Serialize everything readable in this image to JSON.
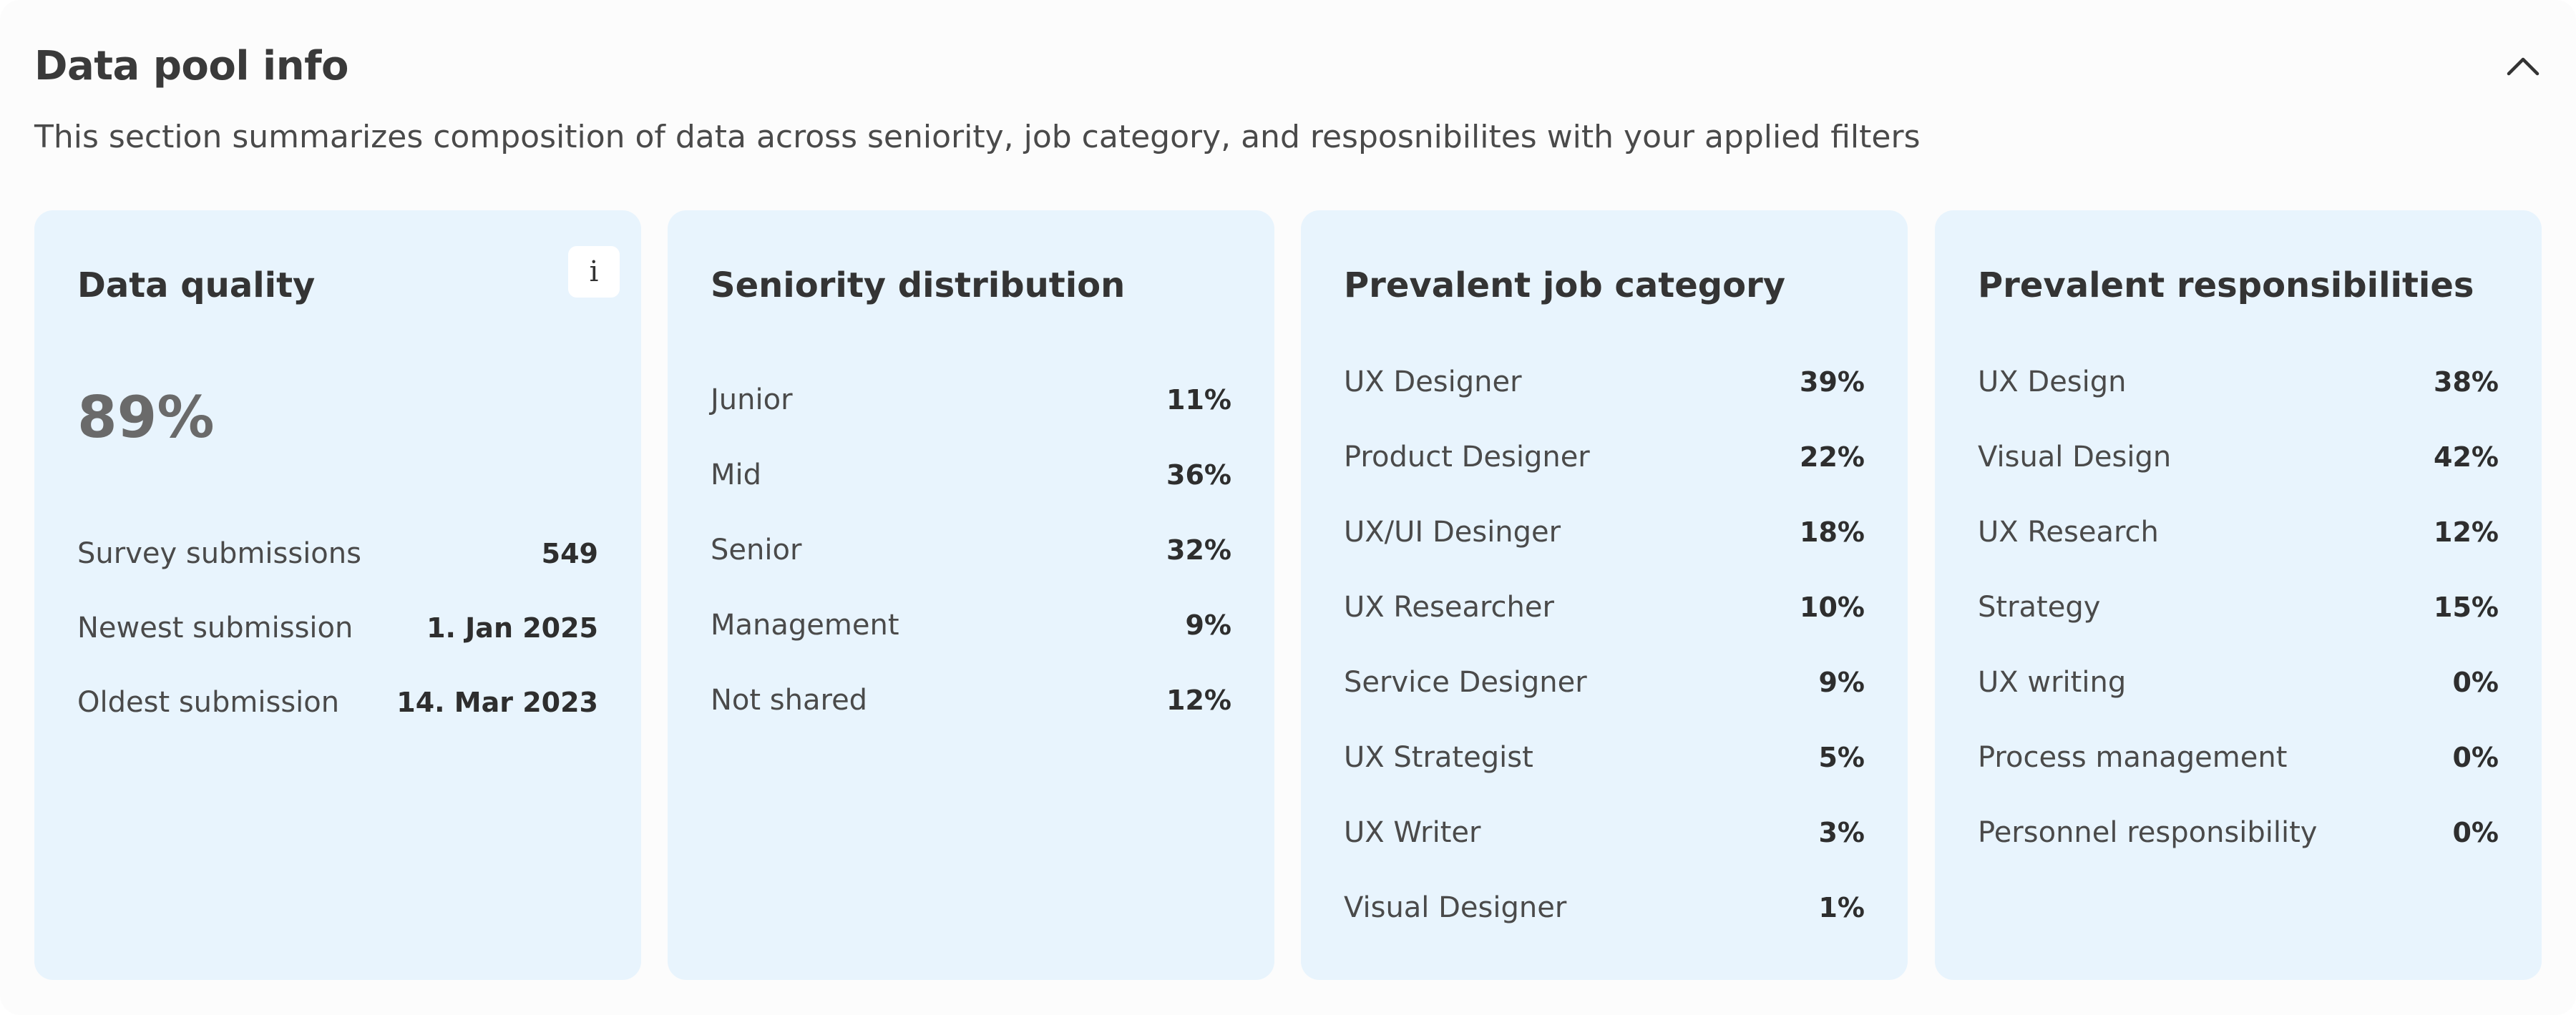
{
  "section": {
    "title": "Data pool info",
    "subtitle": "This section summarizes composition of data across seniority, job category, and resposnibilites with your applied filters",
    "collapse_icon": "chevron-up-icon"
  },
  "data_quality": {
    "title": "Data quality",
    "info_label": "i",
    "score": "89%",
    "rows": [
      {
        "label": "Survey submissions",
        "value": "549"
      },
      {
        "label": "Newest submission",
        "value": "1. Jan 2025"
      },
      {
        "label": "Oldest submission",
        "value": "14. Mar 2023"
      }
    ]
  },
  "seniority": {
    "title": "Seniority distribution",
    "rows": [
      {
        "label": "Junior",
        "value": "11%"
      },
      {
        "label": "Mid",
        "value": "36%"
      },
      {
        "label": "Senior",
        "value": "32%"
      },
      {
        "label": "Management",
        "value": "9%"
      },
      {
        "label": "Not shared",
        "value": "12%"
      }
    ]
  },
  "job_category": {
    "title": "Prevalent job category",
    "rows": [
      {
        "label": "UX Designer",
        "value": "39%"
      },
      {
        "label": "Product Designer",
        "value": "22%"
      },
      {
        "label": "UX/UI Desinger",
        "value": "18%"
      },
      {
        "label": "UX Researcher",
        "value": "10%"
      },
      {
        "label": "Service Designer",
        "value": "9%"
      },
      {
        "label": "UX Strategist",
        "value": "5%"
      },
      {
        "label": "UX Writer",
        "value": "3%"
      },
      {
        "label": "Visual Designer",
        "value": "1%"
      }
    ]
  },
  "responsibilities": {
    "title": "Prevalent responsibilities",
    "rows": [
      {
        "label": "UX Design",
        "value": "38%"
      },
      {
        "label": "Visual Design",
        "value": "42%"
      },
      {
        "label": "UX Research",
        "value": "12%"
      },
      {
        "label": "Strategy",
        "value": "15%"
      },
      {
        "label": "UX writing",
        "value": "0%"
      },
      {
        "label": "Process management",
        "value": "0%"
      },
      {
        "label": "Personnel responsibility",
        "value": "0%"
      }
    ]
  },
  "colors": {
    "card_background": "#e8f4fd",
    "panel_background": "#fcfcfc",
    "text_primary": "#343434"
  }
}
